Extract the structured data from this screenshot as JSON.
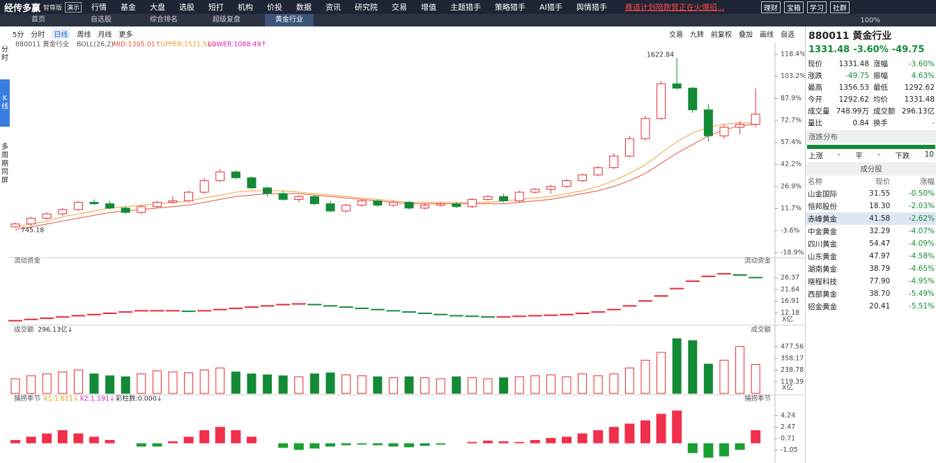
{
  "nav": {
    "logo": "经传多赢",
    "edition": "智尊版",
    "demo": "演示",
    "menu": [
      "行情",
      "基金",
      "大盘",
      "选股",
      "短打",
      "机构",
      "价投",
      "数据",
      "资讯",
      "研究院",
      "交易",
      "增值",
      "主题猎手",
      "策略猎手",
      "AI猎手",
      "舆情猎手"
    ],
    "promo": "赛道计划陪跑营正在火爆招...",
    "buttons": [
      "理财",
      "宝箱",
      "学习",
      "社群"
    ]
  },
  "tabs": {
    "items": [
      "首页",
      "自选股",
      "综合排名",
      "超级复盘",
      "黄金行业"
    ],
    "zoom": "100%"
  },
  "sidebar": [
    "分时",
    "K线",
    "多周期同屏"
  ],
  "toolbar": {
    "left": [
      "5分",
      "分时",
      "日线",
      "周线",
      "月线",
      "更多"
    ],
    "right": [
      "交易",
      "九转",
      "前复权",
      "叠加",
      "画线",
      "自选"
    ]
  },
  "chart_data": [
    {
      "type": "candlestick",
      "title": "880011 黄金行业",
      "indicator": "BOLL(26,2)",
      "lower_label": "LOWER:1088.49↑",
      "max_label": "1622.84",
      "min_label": "745.18",
      "up_color": "#e8262f",
      "down_color": "#138a36",
      "open": [
        -1,
        1,
        5,
        8,
        11,
        16,
        15,
        12,
        9,
        13,
        16,
        17,
        23,
        31,
        37,
        33,
        26,
        22,
        18,
        20,
        15,
        10,
        14,
        17,
        14,
        16,
        12,
        14,
        15,
        13,
        18,
        20,
        17,
        23,
        25,
        27,
        31,
        35,
        40,
        48,
        60,
        74,
        98,
        95,
        80,
        62,
        68,
        70
      ],
      "high": [
        2,
        6,
        9,
        12,
        17,
        18,
        17,
        13,
        14,
        17,
        20,
        24,
        33,
        39,
        38,
        34,
        27,
        24,
        21,
        21,
        17,
        15,
        18,
        18,
        17,
        17,
        15,
        16,
        16,
        19,
        21,
        22,
        24,
        26,
        28,
        32,
        36,
        41,
        50,
        62,
        76,
        100,
        116,
        96,
        84,
        70,
        72,
        95
      ],
      "low": [
        -1.5,
        0,
        4,
        7,
        10,
        14,
        11,
        8,
        8,
        12,
        15,
        16,
        22,
        30,
        32,
        25,
        20,
        17,
        16,
        14,
        9,
        9,
        13,
        13,
        13,
        11,
        11,
        13,
        12,
        12,
        17,
        16,
        16,
        22,
        22,
        26,
        30,
        34,
        39,
        47,
        59,
        73,
        94,
        78,
        58,
        60,
        63,
        68
      ],
      "close": [
        1,
        5,
        8,
        11,
        16,
        15,
        12,
        9,
        13,
        16,
        17,
        23,
        31,
        37,
        33,
        26,
        22,
        18,
        20,
        15,
        10,
        14,
        17,
        14,
        16,
        12,
        14,
        15,
        13,
        18,
        20,
        17,
        23,
        25,
        27,
        31,
        35,
        40,
        48,
        60,
        74,
        98,
        95,
        80,
        62,
        68,
        70,
        77
      ],
      "series": [
        {
          "name": "MID:1305.01↑",
          "color": "#e8503a",
          "values": [
            -3,
            -1,
            1,
            3,
            5,
            7,
            9,
            10,
            11,
            12,
            13,
            14,
            16,
            18,
            20,
            21,
            22,
            22,
            22,
            21,
            20,
            19,
            18,
            17,
            16,
            15,
            15,
            15,
            15,
            15,
            15,
            15,
            16,
            17,
            18,
            20,
            22,
            24,
            27,
            31,
            36,
            43,
            50,
            56,
            62,
            66,
            69,
            70
          ]
        },
        {
          "name": "UPPER:1521.54↓",
          "color": "#f0a030",
          "values": [
            -1,
            1,
            3,
            6,
            8,
            10,
            12,
            13,
            14,
            15,
            16,
            17,
            19,
            21,
            23,
            24,
            24,
            24,
            23,
            22,
            21,
            20,
            19,
            18,
            17,
            16,
            16,
            16,
            16,
            16,
            16,
            17,
            18,
            19,
            20,
            22,
            24,
            27,
            31,
            36,
            42,
            50,
            58,
            64,
            68,
            70,
            71,
            71
          ]
        }
      ],
      "ylim": [
        -21.3,
        124.2
      ],
      "yticks": [
        {
          "value": 118.4,
          "label": "118.4%"
        },
        {
          "value": 103.2,
          "label": "103.2%"
        },
        {
          "value": 87.9,
          "label": "87.9%"
        },
        {
          "value": 72.7,
          "label": "72.7%"
        },
        {
          "value": 57.4,
          "label": "57.4%"
        },
        {
          "value": 42.2,
          "label": "42.2%"
        },
        {
          "value": 26.9,
          "label": "26.9%"
        },
        {
          "value": 11.7,
          "label": "11.7%"
        },
        {
          "value": -3.6,
          "label": "-3.6%"
        },
        {
          "value": -18.9,
          "label": "-18.9%"
        }
      ]
    },
    {
      "type": "dash-line",
      "title": "流动资金",
      "unit": "X亿",
      "up_color": "#e8262f",
      "down_color": "#138a36",
      "values": [
        9,
        9.5,
        10,
        10.5,
        11,
        11.5,
        12,
        12.5,
        13,
        13,
        13,
        12.8,
        13,
        13.5,
        14,
        14.5,
        15,
        15.5,
        15.8,
        15.5,
        15,
        14.5,
        14,
        13.5,
        13,
        12.5,
        12,
        11.5,
        11,
        10.8,
        10.5,
        10.5,
        10.8,
        11,
        11.2,
        11.5,
        12,
        12.5,
        13.5,
        15,
        17,
        19,
        22,
        25,
        27,
        28,
        27.5,
        26.5
      ],
      "ylim": [
        8.6,
        30.9
      ],
      "yticks": [
        26.37,
        21.64,
        16.91,
        12.18
      ]
    },
    {
      "type": "bar",
      "title": "成交额",
      "last_label": "296.13亿↓",
      "unit": "X亿",
      "values": [
        150,
        180,
        200,
        220,
        240,
        200,
        180,
        170,
        200,
        230,
        220,
        210,
        240,
        260,
        220,
        200,
        190,
        180,
        170,
        200,
        210,
        190,
        180,
        170,
        160,
        170,
        160,
        150,
        170,
        160,
        150,
        160,
        170,
        180,
        190,
        170,
        200,
        180,
        200,
        260,
        340,
        420,
        560,
        540,
        300,
        340,
        480,
        296.13
      ],
      "ylim": [
        0,
        592
      ],
      "yticks": [
        477.56,
        358.17,
        238.78,
        119.39
      ]
    },
    {
      "type": "signed-bar",
      "title": "捕捞季节",
      "legend": [
        "X1:1.611↓",
        "X2:1.191↓",
        "彩柱数:0.000↓"
      ],
      "up_color": "#f0304a",
      "down_color": "#18a030",
      "values": [
        0.5,
        1,
        1.5,
        2,
        1.5,
        1,
        0.5,
        0,
        -0.5,
        -0.5,
        0.3,
        1,
        2,
        2.5,
        2,
        1,
        0,
        -0.7,
        -1,
        -0.8,
        -0.5,
        -0.3,
        -0.2,
        -0.3,
        -0.5,
        -0.6,
        -0.4,
        -0.2,
        0,
        0.2,
        0.4,
        0.3,
        0.2,
        0.5,
        0.8,
        1,
        1.5,
        2,
        2.5,
        3,
        3.5,
        4.5,
        5,
        -1.5,
        -2.2,
        -2,
        -1,
        2
      ],
      "ylim": [
        -2.48,
        4.96
      ],
      "yticks": [
        4.24,
        2.47,
        0.71,
        -1.05
      ]
    }
  ],
  "quote": {
    "code_name": "880011 黄金行业",
    "price": "1331.48",
    "change_pct": "-3.60%",
    "change": "-49.75",
    "rows": [
      [
        "现价",
        "1331.48",
        "涨幅",
        "-3.60%"
      ],
      [
        "涨跌",
        "-49.75",
        "振幅",
        "4.63%"
      ],
      [
        "最高",
        "1356.53",
        "最低",
        "1292.62"
      ],
      [
        "今开",
        "1292.62",
        "均价",
        "1331.48"
      ],
      [
        "成交量",
        "748.99万",
        "成交额",
        "296.13亿"
      ],
      [
        "量比",
        "0.84",
        "换手",
        "-"
      ]
    ],
    "distribution": {
      "title": "涨跌分布",
      "labels": [
        "上涨",
        "-",
        "平",
        "-",
        "下跌",
        "10"
      ]
    },
    "constituents": {
      "title": "成分股",
      "header": [
        "名称",
        "现价",
        "涨幅"
      ],
      "rows": [
        [
          "山金国际",
          "31.55",
          "-0.50%"
        ],
        [
          "恒邦股份",
          "18.30",
          "-2.03%"
        ],
        [
          "赤峰黄金",
          "41.58",
          "-2.62%"
        ],
        [
          "中金黄金",
          "32.29",
          "-4.07%"
        ],
        [
          "四川黄金",
          "54.47",
          "-4.09%"
        ],
        [
          "山东黄金",
          "47.97",
          "-4.58%"
        ],
        [
          "湖南黄金",
          "38.79",
          "-4.65%"
        ],
        [
          "晓程科技",
          "77.90",
          "-4.95%"
        ],
        [
          "西部黄金",
          "38.70",
          "-5.49%"
        ],
        [
          "招金黄金",
          "20.41",
          "-5.51%"
        ]
      ]
    }
  }
}
